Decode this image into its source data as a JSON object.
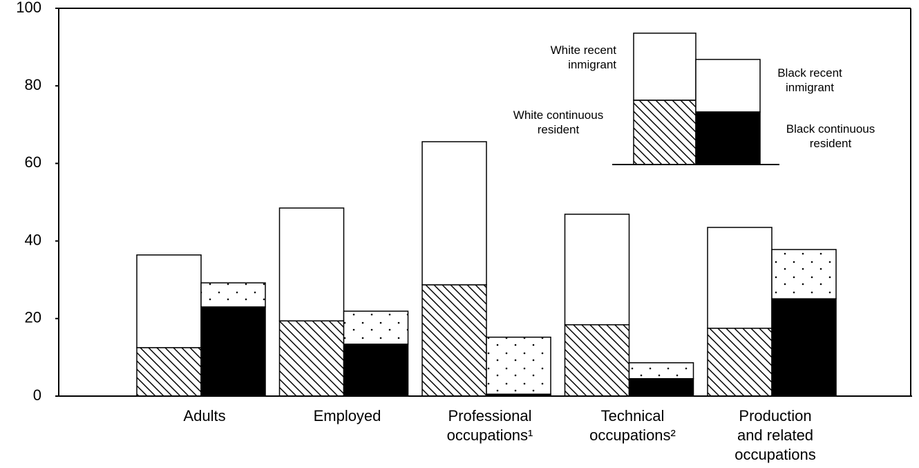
{
  "chart_data": {
    "type": "stacked-bar",
    "categories": [
      [
        "Adults"
      ],
      [
        "Employed"
      ],
      [
        "Professional",
        "occupations¹"
      ],
      [
        "Technical",
        "occupations²"
      ],
      [
        "Production",
        "and related",
        "occupations"
      ]
    ],
    "series": [
      {
        "name": "White continuous resident",
        "color": "#000000",
        "pattern": "hatch",
        "values": [
          12.5,
          19.4,
          28.7,
          18.4,
          17.5
        ]
      },
      {
        "name": "White recent inmigrant",
        "color": "#ffffff",
        "pattern": "none",
        "values": [
          23.9,
          29.1,
          36.9,
          28.5,
          26.0
        ]
      },
      {
        "name": "Black continuous resident",
        "color": "#000000",
        "pattern": "solid",
        "values": [
          23.0,
          13.4,
          0.5,
          4.5,
          25.1
        ]
      },
      {
        "name": "Black recent inmigrant",
        "color": "#ffffff",
        "pattern": "dots",
        "values": [
          6.2,
          8.5,
          14.7,
          4.1,
          12.7
        ]
      }
    ],
    "ylim": [
      0,
      100
    ],
    "yticks": [
      0,
      20,
      40,
      60,
      80,
      100
    ],
    "grid": false
  }
}
